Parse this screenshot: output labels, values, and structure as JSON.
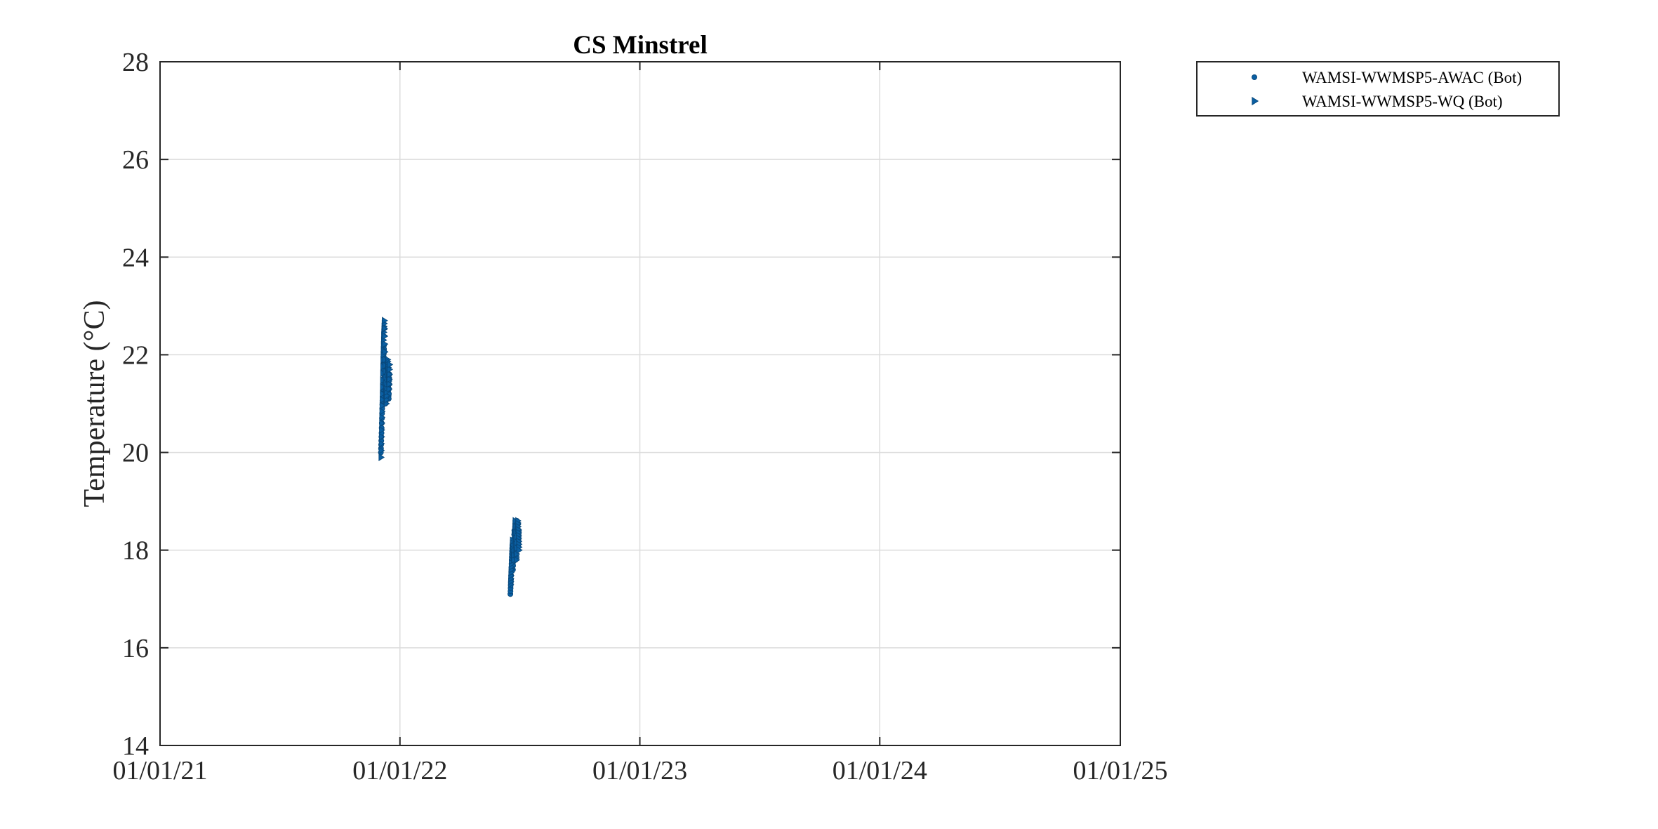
{
  "chart_data": {
    "type": "scatter",
    "title": "CS Minstrel",
    "xlabel": "",
    "ylabel": "Temperature (°C)",
    "x_axis_kind": "date",
    "x_ticks": [
      "01/01/21",
      "01/01/22",
      "01/01/23",
      "01/01/24",
      "01/01/25"
    ],
    "y_ticks": [
      "14",
      "16",
      "18",
      "20",
      "22",
      "24",
      "26",
      "28"
    ],
    "xlim": [
      "2021-01-01",
      "2025-01-01"
    ],
    "ylim": [
      14,
      28
    ],
    "grid": true,
    "legend_position": "outside-top-right",
    "marker_color": "#0a5fa3",
    "series": [
      {
        "name": "WAMSI-WWMSP5-AWAC (Bot)",
        "marker": "circle",
        "points": [
          {
            "x": "2021-12-03",
            "y": 20.0
          },
          {
            "x": "2021-12-04",
            "y": 20.4
          },
          {
            "x": "2021-12-05",
            "y": 20.9
          },
          {
            "x": "2021-12-06",
            "y": 21.3
          },
          {
            "x": "2021-12-07",
            "y": 21.8
          },
          {
            "x": "2021-12-08",
            "y": 22.2
          },
          {
            "x": "2021-12-09",
            "y": 21.5
          },
          {
            "x": "2021-12-10",
            "y": 21.0
          },
          {
            "x": "2021-12-11",
            "y": 21.2
          },
          {
            "x": "2021-12-12",
            "y": 21.6
          },
          {
            "x": "2021-12-13",
            "y": 21.8
          },
          {
            "x": "2021-12-14",
            "y": 21.4
          },
          {
            "x": "2021-12-15",
            "y": 21.1
          },
          {
            "x": "2021-12-16",
            "y": 21.6
          },
          {
            "x": "2022-06-18",
            "y": 17.1
          },
          {
            "x": "2022-06-19",
            "y": 17.4
          },
          {
            "x": "2022-06-20",
            "y": 17.8
          },
          {
            "x": "2022-06-21",
            "y": 18.1
          },
          {
            "x": "2022-06-22",
            "y": 17.6
          },
          {
            "x": "2022-06-23",
            "y": 18.0
          },
          {
            "x": "2022-06-24",
            "y": 18.4
          },
          {
            "x": "2022-06-25",
            "y": 18.2
          },
          {
            "x": "2022-06-26",
            "y": 17.8
          },
          {
            "x": "2022-06-27",
            "y": 18.3
          },
          {
            "x": "2022-06-28",
            "y": 18.6
          },
          {
            "x": "2022-06-29",
            "y": 18.5
          },
          {
            "x": "2022-06-30",
            "y": 18.1
          },
          {
            "x": "2022-07-01",
            "y": 18.4
          }
        ]
      },
      {
        "name": "WAMSI-WWMSP5-WQ (Bot)",
        "marker": "triangle-right",
        "points": [
          {
            "x": "2021-12-03",
            "y": 19.9
          },
          {
            "x": "2021-12-04",
            "y": 20.6
          },
          {
            "x": "2021-12-05",
            "y": 21.2
          },
          {
            "x": "2021-12-06",
            "y": 21.9
          },
          {
            "x": "2021-12-07",
            "y": 22.4
          },
          {
            "x": "2021-12-08",
            "y": 22.7
          },
          {
            "x": "2021-12-09",
            "y": 21.9
          },
          {
            "x": "2021-12-10",
            "y": 21.3
          },
          {
            "x": "2021-12-11",
            "y": 21.0
          },
          {
            "x": "2021-12-12",
            "y": 21.4
          },
          {
            "x": "2021-12-13",
            "y": 21.9
          },
          {
            "x": "2021-12-14",
            "y": 21.7
          },
          {
            "x": "2021-12-15",
            "y": 21.3
          },
          {
            "x": "2021-12-16",
            "y": 21.8
          },
          {
            "x": "2022-06-18",
            "y": 17.3
          },
          {
            "x": "2022-06-19",
            "y": 17.6
          },
          {
            "x": "2022-06-20",
            "y": 17.9
          },
          {
            "x": "2022-06-21",
            "y": 18.2
          },
          {
            "x": "2022-06-22",
            "y": 17.9
          },
          {
            "x": "2022-06-23",
            "y": 17.8
          },
          {
            "x": "2022-06-24",
            "y": 18.3
          },
          {
            "x": "2022-06-25",
            "y": 18.6
          },
          {
            "x": "2022-06-26",
            "y": 18.0
          },
          {
            "x": "2022-06-27",
            "y": 17.8
          },
          {
            "x": "2022-06-28",
            "y": 18.4
          },
          {
            "x": "2022-06-29",
            "y": 18.6
          },
          {
            "x": "2022-06-30",
            "y": 18.3
          },
          {
            "x": "2022-07-01",
            "y": 18.0
          }
        ]
      }
    ]
  }
}
